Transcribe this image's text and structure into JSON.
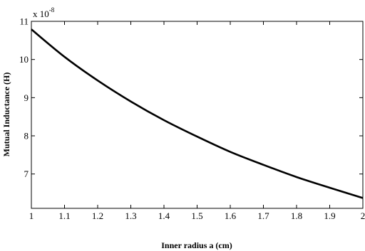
{
  "chart_data": {
    "type": "line",
    "title": "",
    "xlabel": "Inner radius a (cm)",
    "ylabel": "Mutual Inductance (H)",
    "y_multiplier_base": "x 10",
    "y_multiplier_exponent": "-8",
    "xlim": [
      1,
      2
    ],
    "ylim": [
      6.1,
      11
    ],
    "grid": false,
    "x_ticks": [
      1,
      1.1,
      1.2,
      1.3,
      1.4,
      1.5,
      1.6,
      1.7,
      1.8,
      1.9,
      2
    ],
    "x_tick_labels": [
      "1",
      "1.1",
      "1.2",
      "1.3",
      "1.4",
      "1.5",
      "1.6",
      "1.7",
      "1.8",
      "1.9",
      "2"
    ],
    "y_ticks": [
      7,
      8,
      9,
      10,
      11
    ],
    "y_tick_labels": [
      "7",
      "8",
      "9",
      "10",
      "11"
    ],
    "series": [
      {
        "color": "#000000",
        "x": [
          1.0,
          1.1,
          1.2,
          1.3,
          1.4,
          1.5,
          1.6,
          1.7,
          1.8,
          1.9,
          2.0
        ],
        "y": [
          10.79,
          10.07,
          9.45,
          8.9,
          8.41,
          7.98,
          7.58,
          7.24,
          6.92,
          6.64,
          6.37
        ]
      }
    ]
  }
}
